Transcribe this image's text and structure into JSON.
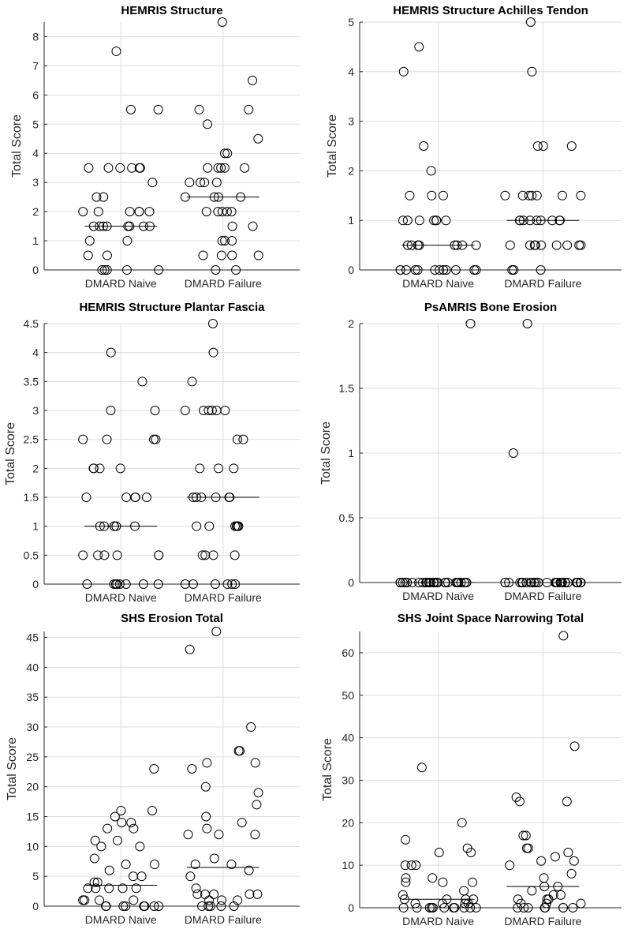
{
  "chart_data": [
    {
      "type": "scatter",
      "title": "HEMRIS Structure",
      "xlabel": "",
      "ylabel": "Total Score",
      "categories": [
        "DMARD Naive",
        "DMARD Failure"
      ],
      "ylim": [
        0,
        8.5
      ],
      "yticks": [
        0,
        1,
        2,
        3,
        4,
        5,
        6,
        7,
        8
      ],
      "grid": true,
      "medians": [
        1.5,
        2.5
      ],
      "series": [
        {
          "name": "DMARD Naive",
          "values": [
            7.5,
            5.5,
            5.5,
            3.5,
            3.5,
            3.5,
            3.5,
            3.5,
            3.5,
            3.0,
            2.5,
            2.5,
            2.0,
            2.0,
            2.0,
            2.0,
            2.0,
            2.0,
            1.5,
            1.5,
            1.5,
            1.5,
            1.5,
            1.5,
            1.5,
            1.5,
            1.0,
            1.0,
            0.5,
            0.5,
            0,
            0,
            0,
            0,
            0
          ]
        },
        {
          "name": "DMARD Failure",
          "values": [
            8.5,
            6.5,
            5.5,
            5.5,
            5.0,
            4.5,
            4.0,
            4.0,
            3.5,
            3.5,
            3.5,
            3.5,
            3.5,
            3.0,
            3.0,
            3.0,
            3.0,
            2.5,
            2.5,
            2.5,
            2.5,
            2.0,
            2.0,
            2.0,
            2.0,
            2.0,
            1.5,
            1.5,
            1.0,
            1.0,
            1.0,
            0.5,
            0.5,
            0.5,
            0.5,
            0,
            0
          ]
        }
      ]
    },
    {
      "type": "scatter",
      "title": "HEMRIS Structure Achilles Tendon",
      "xlabel": "",
      "ylabel": "Total Score",
      "categories": [
        "DMARD Naive",
        "DMARD Failure"
      ],
      "ylim": [
        0,
        5
      ],
      "yticks": [
        0,
        1,
        2,
        3,
        4,
        5
      ],
      "grid": true,
      "medians": [
        0.5,
        1.0
      ],
      "series": [
        {
          "name": "DMARD Naive",
          "values": [
            4.5,
            4.0,
            2.5,
            2.0,
            1.5,
            1.5,
            1.5,
            1.0,
            1.0,
            1.0,
            1.0,
            1.0,
            1.0,
            1.0,
            0.5,
            0.5,
            0.5,
            0.5,
            0.5,
            0.5,
            0.5,
            0.5,
            0,
            0,
            0,
            0,
            0,
            0,
            0,
            0,
            0,
            0,
            0,
            0
          ]
        },
        {
          "name": "DMARD Failure",
          "values": [
            5.0,
            4.0,
            2.5,
            2.5,
            2.5,
            1.5,
            1.5,
            1.5,
            1.5,
            1.5,
            1.5,
            1.5,
            1.0,
            1.0,
            1.0,
            1.0,
            1.0,
            1.0,
            1.0,
            1.0,
            1.0,
            0.5,
            0.5,
            0.5,
            0.5,
            0.5,
            0.5,
            0.5,
            0.5,
            0.5,
            0,
            0,
            0
          ]
        }
      ]
    },
    {
      "type": "scatter",
      "title": "HEMRIS Structure Plantar Fascia",
      "xlabel": "",
      "ylabel": "Total Score",
      "categories": [
        "DMARD Naive",
        "DMARD Failure"
      ],
      "ylim": [
        0,
        4.5
      ],
      "yticks": [
        0,
        0.5,
        1,
        1.5,
        2,
        2.5,
        3,
        3.5,
        4,
        4.5
      ],
      "grid": true,
      "medians": [
        1.0,
        1.5
      ],
      "series": [
        {
          "name": "DMARD Naive",
          "values": [
            4.0,
            3.5,
            3.0,
            3.0,
            2.5,
            2.5,
            2.5,
            2.5,
            2.0,
            2.0,
            2.0,
            2.0,
            1.5,
            1.5,
            1.5,
            1.5,
            1.5,
            1.0,
            1.0,
            1.0,
            1.0,
            1.0,
            1.0,
            0.5,
            0.5,
            0.5,
            0.5,
            0.5,
            0.5,
            0,
            0,
            0,
            0,
            0,
            0,
            0,
            0
          ]
        },
        {
          "name": "DMARD Failure",
          "values": [
            4.5,
            4.0,
            3.5,
            3.0,
            3.0,
            3.0,
            3.0,
            3.0,
            3.0,
            2.5,
            2.5,
            2.0,
            2.0,
            2.0,
            1.5,
            1.5,
            1.5,
            1.5,
            1.5,
            1.5,
            1.0,
            1.0,
            1.0,
            1.0,
            1.0,
            1.0,
            0.5,
            0.5,
            0.5,
            0.5,
            0,
            0,
            0,
            0,
            0,
            0
          ]
        }
      ]
    },
    {
      "type": "scatter",
      "title": "PsAMRIS Bone Erosion",
      "xlabel": "",
      "ylabel": "Total Score",
      "categories": [
        "DMARD Naive",
        "DMARD Failure"
      ],
      "ylim": [
        0,
        2
      ],
      "yticks": [
        0,
        0.5,
        1,
        1.5,
        2
      ],
      "grid": true,
      "medians": [
        0,
        0
      ],
      "series": [
        {
          "name": "DMARD Naive",
          "values": [
            2,
            0,
            0,
            0,
            0,
            0,
            0,
            0,
            0,
            0,
            0,
            0,
            0,
            0,
            0,
            0,
            0,
            0,
            0,
            0,
            0,
            0,
            0,
            0,
            0,
            0,
            0,
            0,
            0,
            0,
            0,
            0,
            0
          ]
        },
        {
          "name": "DMARD Failure",
          "values": [
            2,
            1,
            0,
            0,
            0,
            0,
            0,
            0,
            0,
            0,
            0,
            0,
            0,
            0,
            0,
            0,
            0,
            0,
            0,
            0,
            0,
            0,
            0,
            0,
            0,
            0,
            0,
            0,
            0,
            0,
            0,
            0,
            0
          ]
        }
      ]
    },
    {
      "type": "scatter",
      "title": "SHS Erosion Total",
      "xlabel": "",
      "ylabel": "Total Score",
      "categories": [
        "DMARD Naive",
        "DMARD Failure"
      ],
      "ylim": [
        0,
        46
      ],
      "yticks": [
        0,
        5,
        10,
        15,
        20,
        25,
        30,
        35,
        40,
        45
      ],
      "grid": true,
      "medians": [
        3.5,
        6.5
      ],
      "series": [
        {
          "name": "DMARD Naive",
          "values": [
            23,
            16,
            16,
            15,
            14,
            14,
            13,
            13,
            11,
            11,
            10,
            10,
            8,
            7,
            7,
            6,
            5,
            5,
            4,
            4,
            3,
            3,
            3,
            3,
            3,
            1,
            1,
            1,
            1,
            1,
            0,
            0,
            0,
            0,
            0,
            0,
            0,
            0
          ]
        },
        {
          "name": "DMARD Failure",
          "values": [
            46,
            43,
            30,
            26,
            26,
            24,
            24,
            23,
            20,
            19,
            17,
            15,
            14,
            13,
            12,
            12,
            12,
            8,
            7,
            7,
            6,
            5,
            3,
            2,
            2,
            2,
            2,
            2,
            1,
            1,
            1,
            0,
            0,
            0,
            0,
            0
          ]
        }
      ]
    },
    {
      "type": "scatter",
      "title": "SHS Joint Space Narrowing Total",
      "xlabel": "",
      "ylabel": "Total Score",
      "categories": [
        "DMARD Naive",
        "DMARD Failure"
      ],
      "ylim": [
        0,
        65
      ],
      "yticks": [
        0,
        10,
        20,
        30,
        40,
        50,
        60
      ],
      "grid": true,
      "medians": [
        2,
        5
      ],
      "series": [
        {
          "name": "DMARD Naive",
          "values": [
            33,
            20,
            16,
            14,
            13,
            13,
            10,
            10,
            10,
            7,
            7,
            6,
            6,
            6,
            4,
            3,
            2,
            2,
            2,
            2,
            1,
            1,
            1,
            1,
            0,
            0,
            0,
            0,
            0,
            0,
            0,
            0,
            0,
            0,
            0
          ]
        },
        {
          "name": "DMARD Failure",
          "values": [
            64,
            38,
            26,
            25,
            25,
            17,
            17,
            14,
            14,
            13,
            12,
            11,
            11,
            10,
            8,
            7,
            5,
            5,
            4,
            3,
            3,
            2,
            2,
            2,
            1,
            1,
            1,
            0,
            0,
            0,
            0,
            0,
            0,
            0,
            0
          ]
        }
      ]
    }
  ]
}
